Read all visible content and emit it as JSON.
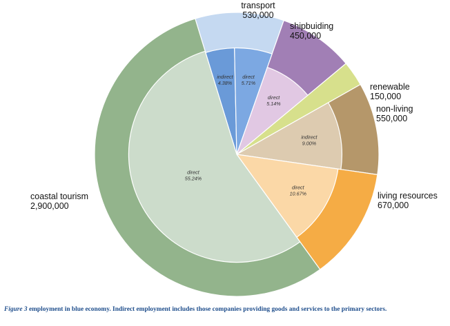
{
  "caption": {
    "figure_ref": "Figure 3",
    "text": "employment in blue economy. Indirect employment includes those companies providing goods and services to the primary sectors."
  },
  "chart_data": {
    "type": "pie",
    "title": "",
    "outer": [
      {
        "name": "transport",
        "label": "530,000",
        "value": 530000,
        "color": "#c5d9f1"
      },
      {
        "name": "shipbuiding",
        "label": "450,000",
        "value": 450000,
        "color": "#a17fb5"
      },
      {
        "name": "renewable",
        "label": "150,000",
        "value": 150000,
        "color": "#d7e08c"
      },
      {
        "name": "non-living",
        "label": "550,000",
        "value": 550000,
        "color": "#b5976a"
      },
      {
        "name": "living resources",
        "label": "670,000",
        "value": 670000,
        "color": "#f5ac45"
      },
      {
        "name": "coastal tourism",
        "label": "2,900,000",
        "value": 2900000,
        "color": "#93b48c"
      }
    ],
    "inner": [
      {
        "sector": "transport",
        "type": "indirect",
        "label": "4.38%",
        "value": 4.38,
        "color": "#6a9ad8"
      },
      {
        "sector": "transport",
        "type": "direct",
        "label": "5.71%",
        "value": 5.71,
        "color": "#7ca8e2"
      },
      {
        "sector": "shipbuiding",
        "type": "direct",
        "label": "5.14%",
        "value": 5.14,
        "color": "#e1c8e3"
      },
      {
        "sector": "non-living",
        "type": "indirect",
        "label": "9.00%",
        "value": 9.0,
        "color": "#ddcbb0"
      },
      {
        "sector": "living resources",
        "type": "direct",
        "label": "10.67%",
        "value": 10.67,
        "color": "#fbd8a7"
      },
      {
        "sector": "coastal tourism",
        "type": "direct",
        "label": "55.24%",
        "value": 55.24,
        "color": "#ccdccb"
      }
    ]
  }
}
